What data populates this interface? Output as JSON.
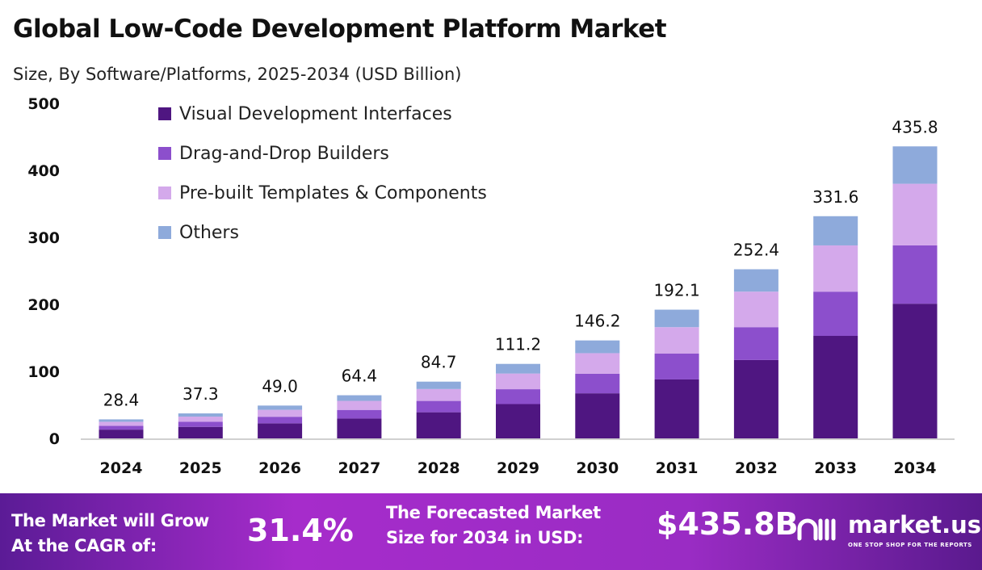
{
  "title": "Global Low-Code Development Platform Market",
  "subtitle": "Size, By Software/Platforms, 2025-2034 (USD Billion)",
  "chart_data": {
    "type": "bar",
    "stacked": true,
    "categories": [
      "2024",
      "2025",
      "2026",
      "2027",
      "2028",
      "2029",
      "2030",
      "2031",
      "2032",
      "2033",
      "2034"
    ],
    "series": [
      {
        "name": "Visual Development Interfaces",
        "color": "#4f1681",
        "values": [
          13.1,
          17.2,
          22.5,
          29.6,
          39.0,
          51.2,
          67.3,
          88.0,
          117.0,
          153.0,
          201.0
        ]
      },
      {
        "name": "Drag-and-Drop Builders",
        "color": "#8c4fcc",
        "values": [
          5.7,
          7.5,
          9.8,
          12.9,
          16.9,
          22.2,
          29.2,
          38.5,
          49.0,
          66.0,
          87.0
        ]
      },
      {
        "name": "Pre-built Templates & Components",
        "color": "#d4a9eb",
        "values": [
          6.0,
          7.8,
          10.3,
          13.5,
          17.8,
          23.4,
          30.7,
          39.5,
          53.0,
          69.0,
          92.0
        ]
      },
      {
        "name": "Others",
        "color": "#8eaadb",
        "values": [
          3.6,
          4.8,
          6.4,
          8.4,
          11.0,
          14.4,
          19.0,
          26.1,
          33.4,
          43.6,
          55.8
        ]
      }
    ],
    "totals": [
      "28.4",
      "37.3",
      "49.0",
      "64.4",
      "84.7",
      "111.2",
      "146.2",
      "192.1",
      "252.4",
      "331.6",
      "435.8"
    ],
    "yticks": [
      "0",
      "100",
      "200",
      "300",
      "400",
      "500"
    ],
    "ylim": [
      0,
      500
    ],
    "grid": false,
    "legend": "top-left"
  },
  "banner": {
    "cagr_label_1": "The Market will Grow",
    "cagr_label_2": "At the CAGR of:",
    "cagr_value": "31.4%",
    "forecast_label_1": "The Forecasted Market",
    "forecast_label_2": "Size for 2034 in USD:",
    "forecast_value": "$435.8B",
    "logo": "market.us",
    "logo_tagline": "ONE STOP SHOP FOR THE REPORTS"
  }
}
